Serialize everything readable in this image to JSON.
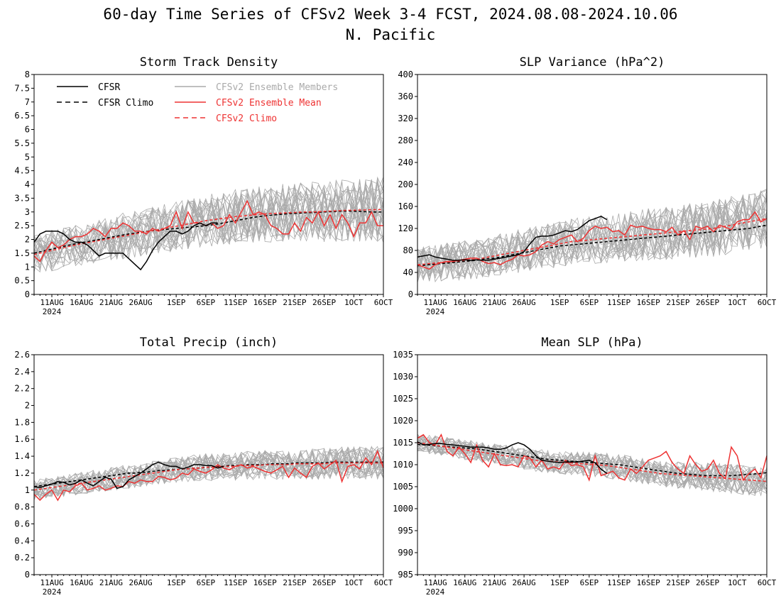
{
  "figure": {
    "title": "60-day Time Series of CFSv2 Week 3-4 FCST, 2024.08.08-2024.10.06",
    "subtitle": "N. Pacific"
  },
  "legend": {
    "items": [
      {
        "label": "CFSR",
        "color": "#000000",
        "dashed": false
      },
      {
        "label": "CFSR Climo",
        "color": "#000000",
        "dashed": true
      },
      {
        "label": "CFSv2 Ensemble Members",
        "color": "#aaaaaa",
        "dashed": false
      },
      {
        "label": "CFSv2 Ensemble Mean",
        "color": "#ee3333",
        "dashed": false
      },
      {
        "label": "CFSv2 Climo",
        "color": "#ee3333",
        "dashed": true
      }
    ]
  },
  "x_axis": {
    "tick_labels": [
      "11AUG",
      "16AUG",
      "21AUG",
      "26AUG",
      "1SEP",
      "6SEP",
      "11SEP",
      "16SEP",
      "21SEP",
      "26SEP",
      "1OCT",
      "6OCT"
    ],
    "tick_days": [
      3,
      8,
      13,
      18,
      24,
      29,
      34,
      39,
      44,
      49,
      54,
      59
    ],
    "year_label": "2024"
  },
  "chart_data": [
    {
      "type": "line",
      "title": "Storm Track Density",
      "ylim": [
        0,
        8
      ],
      "yticks": [
        0,
        0.5,
        1,
        1.5,
        2,
        2.5,
        3,
        3.5,
        4,
        4.5,
        5,
        5.5,
        6,
        6.5,
        7,
        7.5,
        8
      ],
      "x": "day index 0-59 (2024-08-08 to 2024-10-06)",
      "series": [
        {
          "name": "CFSR",
          "values": [
            1.9,
            2.2,
            2.3,
            2.3,
            2.3,
            2.2,
            2.0,
            1.9,
            1.9,
            1.8,
            1.6,
            1.4,
            1.5,
            1.5,
            1.5,
            1.5,
            1.3,
            1.1,
            0.9,
            1.2,
            1.6,
            1.9,
            2.1,
            2.3,
            2.3,
            2.2,
            2.3,
            2.5,
            2.6,
            2.5,
            2.6,
            2.6
          ]
        },
        {
          "name": "CFSR Climo",
          "values": [
            1.5,
            1.55,
            1.6,
            1.65,
            1.7,
            1.75,
            1.8,
            1.84,
            1.88,
            1.92,
            1.96,
            2.0,
            2.04,
            2.08,
            2.12,
            2.16,
            2.2,
            2.23,
            2.26,
            2.29,
            2.32,
            2.34,
            2.36,
            2.38,
            2.4,
            2.42,
            2.44,
            2.46,
            2.48,
            2.5,
            2.53,
            2.56,
            2.6,
            2.64,
            2.68,
            2.72,
            2.76,
            2.8,
            2.83,
            2.86,
            2.88,
            2.9,
            2.92,
            2.94,
            2.95,
            2.96,
            2.97,
            2.98,
            2.99,
            3.0,
            3.01,
            3.02,
            3.03,
            3.03,
            3.03,
            3.02,
            3.01,
            3.0,
            3.0,
            3.0
          ]
        },
        {
          "name": "CFSv2 Ensemble Mean",
          "values": [
            1.4,
            1.2,
            1.6,
            1.9,
            1.7,
            1.8,
            2.0,
            2.1,
            2.1,
            2.2,
            2.4,
            2.3,
            2.1,
            2.4,
            2.4,
            2.6,
            2.5,
            2.3,
            2.3,
            2.2,
            2.4,
            2.3,
            2.4,
            2.5,
            3.0,
            2.4,
            3.0,
            2.6,
            2.6,
            2.5,
            2.6,
            2.4,
            2.5,
            2.9,
            2.6,
            3.0,
            3.4,
            2.9,
            3.0,
            2.9,
            2.5,
            2.4,
            2.2,
            2.2,
            2.6,
            2.3,
            2.8,
            2.6,
            3.0,
            2.5,
            2.9,
            2.4,
            2.9,
            2.6,
            2.1,
            2.6,
            2.6,
            3.0,
            2.5,
            2.5
          ]
        },
        {
          "name": "CFSv2 Climo",
          "values": [
            1.45,
            1.5,
            1.55,
            1.6,
            1.65,
            1.7,
            1.75,
            1.8,
            1.84,
            1.88,
            1.92,
            1.96,
            2.0,
            2.04,
            2.08,
            2.12,
            2.16,
            2.2,
            2.24,
            2.28,
            2.32,
            2.36,
            2.4,
            2.44,
            2.48,
            2.52,
            2.56,
            2.6,
            2.64,
            2.68,
            2.71,
            2.74,
            2.77,
            2.8,
            2.83,
            2.85,
            2.87,
            2.89,
            2.91,
            2.93,
            2.94,
            2.95,
            2.96,
            2.97,
            2.98,
            2.99,
            3.0,
            3.0,
            3.01,
            3.02,
            3.03,
            3.04,
            3.05,
            3.06,
            3.06,
            3.07,
            3.07,
            3.08,
            3.08,
            3.08
          ]
        }
      ],
      "ensemble": {
        "count": 24,
        "spread": 1.2
      }
    },
    {
      "type": "line",
      "title": "SLP Variance (hPa^2)",
      "ylim": [
        0,
        400
      ],
      "yticks": [
        0,
        40,
        80,
        120,
        160,
        200,
        240,
        280,
        320,
        360,
        400
      ],
      "series": [
        {
          "name": "CFSR",
          "values": [
            68,
            70,
            72,
            68,
            66,
            64,
            62,
            62,
            63,
            62,
            63,
            62,
            62,
            64,
            66,
            68,
            70,
            72,
            78,
            92,
            104,
            106,
            106,
            108,
            112,
            116,
            114,
            118,
            126,
            134,
            138,
            142,
            136
          ]
        },
        {
          "name": "CFSR Climo",
          "values": [
            52,
            53,
            54,
            55,
            56,
            57,
            58,
            59,
            60,
            61,
            62,
            64,
            65,
            66,
            68,
            70,
            72,
            74,
            76,
            78,
            80,
            82,
            84,
            86,
            88,
            89,
            90,
            91,
            92,
            93,
            94,
            95,
            96,
            97,
            98,
            99,
            100,
            101,
            102,
            103,
            104,
            105,
            106,
            107,
            108,
            109,
            110,
            111,
            112,
            113,
            114,
            115,
            116,
            117,
            118,
            119,
            120,
            122,
            124,
            126
          ]
        },
        {
          "name": "CFSv2 Ensemble Mean",
          "values": [
            54,
            50,
            46,
            54,
            58,
            60,
            60,
            62,
            64,
            66,
            66,
            60,
            56,
            58,
            54,
            60,
            64,
            72,
            70,
            72,
            78,
            90,
            96,
            92,
            100,
            104,
            108,
            96,
            102,
            116,
            124,
            120,
            122,
            114,
            116,
            108,
            126,
            122,
            124,
            120,
            118,
            118,
            114,
            122,
            108,
            116,
            100,
            124,
            120,
            124,
            114,
            126,
            122,
            118,
            132,
            136,
            136,
            150,
            132,
            138
          ]
        },
        {
          "name": "CFSv2 Climo",
          "values": [
            54,
            55,
            56,
            57,
            58,
            59,
            60,
            61,
            62,
            63,
            64,
            66,
            68,
            70,
            72,
            74,
            76,
            78,
            80,
            82,
            84,
            86,
            88,
            90,
            92,
            94,
            96,
            97,
            98,
            99,
            100,
            101,
            102,
            103,
            104,
            105,
            106,
            107,
            108,
            109,
            110,
            111,
            112,
            113,
            114,
            115,
            116,
            117,
            118,
            119,
            120,
            122,
            124,
            126,
            128,
            130,
            132,
            134,
            136,
            138
          ]
        }
      ],
      "ensemble": {
        "count": 24,
        "spread": 55
      }
    },
    {
      "type": "line",
      "title": "Total Precip (inch)",
      "ylim": [
        0,
        2.6
      ],
      "yticks": [
        0,
        0.2,
        0.4,
        0.6,
        0.8,
        1,
        1.2,
        1.4,
        1.6,
        1.8,
        2,
        2.2,
        2.4,
        2.6
      ],
      "series": [
        {
          "name": "CFSR",
          "values": [
            1.04,
            1.03,
            1.05,
            1.07,
            1.1,
            1.09,
            1.06,
            1.08,
            1.12,
            1.08,
            1.05,
            1.1,
            1.15,
            1.13,
            1.02,
            1.04,
            1.12,
            1.16,
            1.2,
            1.25,
            1.3,
            1.33,
            1.3,
            1.28,
            1.28,
            1.25,
            1.27,
            1.3,
            1.3,
            1.29,
            1.29,
            1.26,
            1.28
          ]
        },
        {
          "name": "CFSR Climo",
          "values": [
            1.04,
            1.05,
            1.06,
            1.07,
            1.08,
            1.09,
            1.1,
            1.11,
            1.12,
            1.13,
            1.14,
            1.15,
            1.16,
            1.17,
            1.18,
            1.19,
            1.2,
            1.2,
            1.21,
            1.21,
            1.22,
            1.23,
            1.23,
            1.24,
            1.24,
            1.25,
            1.25,
            1.26,
            1.26,
            1.27,
            1.27,
            1.28,
            1.28,
            1.29,
            1.29,
            1.29,
            1.3,
            1.3,
            1.3,
            1.3,
            1.31,
            1.31,
            1.31,
            1.31,
            1.32,
            1.32,
            1.32,
            1.32,
            1.32,
            1.32,
            1.33,
            1.33,
            1.33,
            1.33,
            1.33,
            1.33,
            1.33,
            1.33,
            1.33,
            1.33
          ]
        },
        {
          "name": "CFSv2 Ensemble Mean",
          "values": [
            0.95,
            0.88,
            0.95,
            1.0,
            0.88,
            1.0,
            0.98,
            1.05,
            1.08,
            1.0,
            1.02,
            1.05,
            1.0,
            1.02,
            1.05,
            1.04,
            1.1,
            1.08,
            1.12,
            1.1,
            1.1,
            1.16,
            1.15,
            1.12,
            1.14,
            1.2,
            1.18,
            1.25,
            1.22,
            1.2,
            1.24,
            1.3,
            1.26,
            1.24,
            1.28,
            1.3,
            1.26,
            1.28,
            1.25,
            1.22,
            1.2,
            1.24,
            1.28,
            1.15,
            1.26,
            1.2,
            1.15,
            1.28,
            1.32,
            1.25,
            1.3,
            1.35,
            1.1,
            1.28,
            1.3,
            1.25,
            1.38,
            1.3,
            1.46,
            1.26
          ]
        },
        {
          "name": "CFSv2 Climo",
          "values": [
            1.0,
            1.01,
            1.02,
            1.03,
            1.04,
            1.05,
            1.06,
            1.07,
            1.08,
            1.09,
            1.1,
            1.11,
            1.12,
            1.13,
            1.14,
            1.15,
            1.16,
            1.17,
            1.18,
            1.19,
            1.2,
            1.21,
            1.22,
            1.23,
            1.24,
            1.25,
            1.25,
            1.26,
            1.26,
            1.27,
            1.27,
            1.27,
            1.28,
            1.28,
            1.28,
            1.29,
            1.29,
            1.29,
            1.29,
            1.3,
            1.3,
            1.3,
            1.3,
            1.3,
            1.31,
            1.31,
            1.31,
            1.31,
            1.31,
            1.31,
            1.32,
            1.32,
            1.32,
            1.32,
            1.32,
            1.32,
            1.32,
            1.32,
            1.32,
            1.32
          ]
        }
      ],
      "ensemble": {
        "count": 24,
        "spread": 0.2
      }
    },
    {
      "type": "line",
      "title": "Mean SLP (hPa)",
      "ylim": [
        985,
        1035
      ],
      "yticks": [
        985,
        990,
        995,
        1000,
        1005,
        1010,
        1015,
        1020,
        1025,
        1030,
        1035
      ],
      "series": [
        {
          "name": "CFSR",
          "values": [
            1015.2,
            1014.5,
            1014.6,
            1014.8,
            1014.8,
            1014.6,
            1014.5,
            1014.3,
            1014.2,
            1014.0,
            1014.0,
            1014.0,
            1013.8,
            1013.5,
            1013.5,
            1013.8,
            1014.5,
            1015.0,
            1014.5,
            1013.5,
            1012.0,
            1011.0,
            1010.8,
            1010.6,
            1010.5,
            1010.6,
            1010.6,
            1010.6,
            1010.8,
            1011.0,
            1010.4,
            1009.0,
            1008.0
          ]
        },
        {
          "name": "CFSR Climo",
          "values": [
            1014.6,
            1014.5,
            1014.4,
            1014.3,
            1014.2,
            1014.1,
            1014.0,
            1013.9,
            1013.8,
            1013.7,
            1013.6,
            1013.4,
            1013.2,
            1013.0,
            1012.8,
            1012.6,
            1012.4,
            1012.2,
            1012.0,
            1011.8,
            1011.6,
            1011.4,
            1011.2,
            1011.1,
            1011.0,
            1010.9,
            1010.8,
            1010.7,
            1010.6,
            1010.5,
            1010.4,
            1010.3,
            1010.2,
            1010.1,
            1010.0,
            1009.8,
            1009.6,
            1009.4,
            1009.2,
            1009.0,
            1008.8,
            1008.6,
            1008.4,
            1008.2,
            1008.0,
            1007.9,
            1007.8,
            1007.7,
            1007.6,
            1007.5,
            1007.5,
            1007.5,
            1007.5,
            1007.5,
            1007.6,
            1007.7,
            1007.8,
            1007.9,
            1008.0,
            1008.2
          ]
        },
        {
          "name": "CFSv2 Ensemble Mean",
          "values": [
            1016.0,
            1016.8,
            1015.0,
            1014.5,
            1016.8,
            1013.0,
            1012.0,
            1014.0,
            1012.5,
            1010.5,
            1014.5,
            1011.0,
            1009.5,
            1012.5,
            1010.0,
            1009.8,
            1010.0,
            1009.5,
            1012.0,
            1011.5,
            1009.5,
            1011.0,
            1009.0,
            1009.5,
            1009.0,
            1011.0,
            1009.8,
            1010.0,
            1009.5,
            1006.5,
            1012.0,
            1007.5,
            1008.0,
            1008.5,
            1007.0,
            1006.5,
            1009.0,
            1008.0,
            1009.5,
            1011.0,
            1011.5,
            1012.0,
            1013.0,
            1010.5,
            1009.0,
            1008.0,
            1012.0,
            1010.0,
            1008.5,
            1009.0,
            1011.0,
            1008.0,
            1006.8,
            1014.0,
            1012.0,
            1006.5,
            1008.0,
            1009.0,
            1007.0,
            1012.0
          ]
        },
        {
          "name": "CFSv2 Climo",
          "values": [
            1015.0,
            1014.8,
            1014.6,
            1014.4,
            1014.2,
            1014.0,
            1013.8,
            1013.6,
            1013.4,
            1013.2,
            1013.0,
            1012.8,
            1012.6,
            1012.4,
            1012.2,
            1012.0,
            1011.8,
            1011.6,
            1011.4,
            1011.2,
            1011.0,
            1010.9,
            1010.8,
            1010.7,
            1010.6,
            1010.5,
            1010.4,
            1010.3,
            1010.2,
            1010.1,
            1010.0,
            1009.9,
            1009.8,
            1009.6,
            1009.4,
            1009.2,
            1009.0,
            1008.8,
            1008.6,
            1008.4,
            1008.2,
            1008.0,
            1007.9,
            1007.8,
            1007.7,
            1007.6,
            1007.5,
            1007.4,
            1007.3,
            1007.2,
            1007.1,
            1007.0,
            1006.9,
            1006.8,
            1006.7,
            1006.6,
            1006.5,
            1006.4,
            1006.3,
            1006.2
          ]
        }
      ],
      "ensemble": {
        "count": 24,
        "spread": 3.5
      }
    }
  ]
}
